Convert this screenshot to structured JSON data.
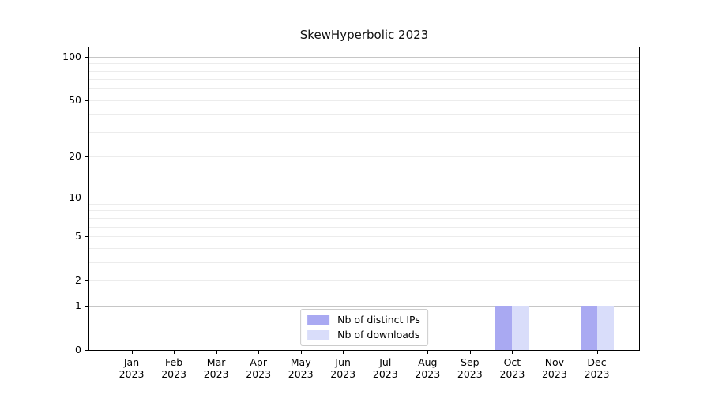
{
  "chart_data": {
    "type": "bar",
    "title": "SkewHyperbolic 2023",
    "categories": [
      "Jan 2023",
      "Feb 2023",
      "Mar 2023",
      "Apr 2023",
      "May 2023",
      "Jun 2023",
      "Jul 2023",
      "Aug 2023",
      "Sep 2023",
      "Oct 2023",
      "Nov 2023",
      "Dec 2023"
    ],
    "series": [
      {
        "name": "Nb of distinct IPs",
        "color": "#a9a9f2",
        "values": [
          0,
          0,
          0,
          0,
          0,
          0,
          0,
          0,
          0,
          1,
          0,
          1
        ]
      },
      {
        "name": "Nb of downloads",
        "color": "#d9ddfa",
        "values": [
          0,
          0,
          0,
          0,
          0,
          0,
          0,
          0,
          0,
          1,
          0,
          1
        ]
      }
    ],
    "y_axis": {
      "scale": "log1p",
      "range": [
        0,
        116
      ],
      "ticks": [
        0,
        1,
        2,
        5,
        10,
        20,
        50,
        100
      ],
      "major_gridlines": [
        1,
        10,
        100
      ],
      "minor_gridlines": [
        2,
        3,
        4,
        5,
        6,
        7,
        8,
        9,
        20,
        30,
        40,
        50,
        60,
        70,
        80,
        90
      ]
    },
    "xlabel": "",
    "ylabel": "",
    "grid": true,
    "legend": {
      "position": "lower center",
      "border_color": "#cccccc",
      "background": "#ffffff"
    },
    "colors": {
      "major_grid": "#c6c6c6",
      "minor_grid": "#ececec",
      "spine": "#000000",
      "background": "#ffffff"
    }
  }
}
